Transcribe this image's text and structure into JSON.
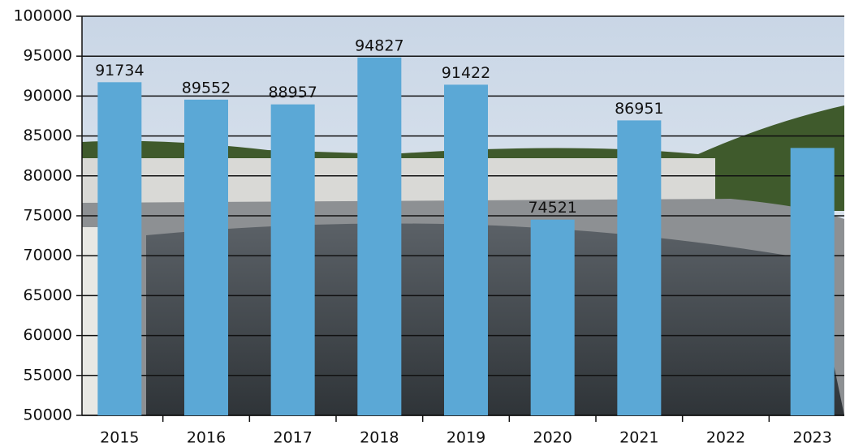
{
  "chart_data": {
    "type": "bar",
    "categories": [
      "2015",
      "2016",
      "2017",
      "2018",
      "2019",
      "2020",
      "2021",
      "2022",
      "2023"
    ],
    "values": [
      91734,
      89552,
      88957,
      94827,
      91422,
      74521,
      86951,
      null,
      83500
    ],
    "value_labels": [
      "91734",
      "89552",
      "88957",
      "94827",
      "91422",
      "74521",
      "86951",
      null,
      null
    ],
    "color": "#5ba8d6",
    "ylim": [
      50000,
      100000
    ],
    "yticks": [
      50000,
      55000,
      60000,
      65000,
      70000,
      75000,
      80000,
      85000,
      90000,
      95000,
      100000
    ],
    "grid": true
  }
}
